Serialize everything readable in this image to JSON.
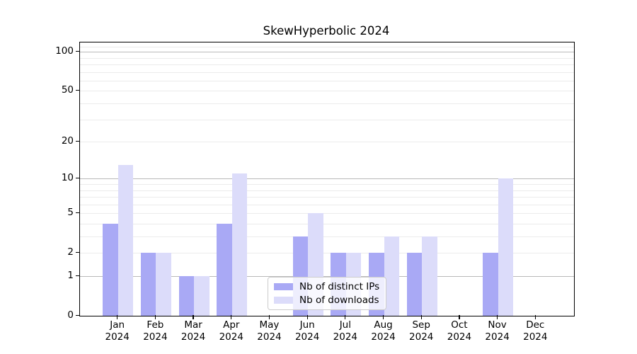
{
  "chart_data": {
    "type": "bar",
    "title": "SkewHyperbolic 2024",
    "categories": [
      "Jan",
      "Feb",
      "Mar",
      "Apr",
      "May",
      "Jun",
      "Jul",
      "Aug",
      "Sep",
      "Oct",
      "Nov",
      "Dec"
    ],
    "category_year": "2024",
    "series": [
      {
        "name": "Nb of distinct IPs",
        "color": "#a9a9f5",
        "values": [
          4,
          2,
          1,
          4,
          0,
          3,
          2,
          2,
          2,
          0,
          2,
          0
        ]
      },
      {
        "name": "Nb of downloads",
        "color": "#dcdcfa",
        "values": [
          13,
          2,
          1,
          11,
          0,
          5,
          2,
          3,
          3,
          0,
          10,
          0
        ]
      }
    ],
    "yscale": "log1p",
    "ylim": [
      0,
      118
    ],
    "yticks": [
      0,
      1,
      2,
      5,
      10,
      20,
      50,
      100
    ],
    "major_gridlines": [
      1,
      10,
      100
    ],
    "minor_gridlines": [
      2,
      3,
      4,
      5,
      6,
      7,
      8,
      9,
      20,
      30,
      40,
      50,
      60,
      70,
      80,
      90,
      110
    ],
    "grid": true,
    "legend_position": "lower center",
    "xlabel": "",
    "ylabel": ""
  },
  "colors": {
    "background": "#ffffff",
    "bar_distinct_ips": "#a9a9f5",
    "bar_downloads": "#dcdcfa",
    "grid_major": "#b9b9b9",
    "grid_minor": "#ebebeb",
    "axis": "#000000",
    "text": "#000000",
    "legend_border": "#cccccc"
  }
}
